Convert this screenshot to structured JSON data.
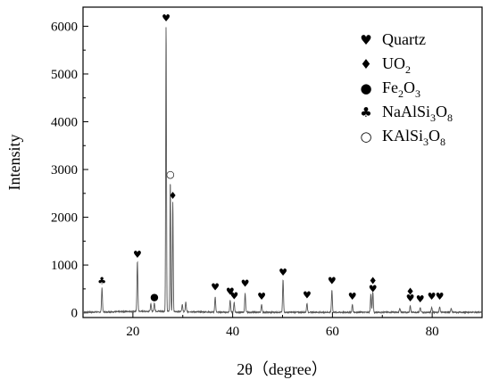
{
  "chart_data": {
    "type": "line",
    "title": "",
    "xlabel": "2θ（degree）",
    "ylabel": "Intensity",
    "xlim": [
      10,
      90
    ],
    "ylim": [
      -100,
      6400
    ],
    "x_ticks": [
      20,
      40,
      60,
      80
    ],
    "x_tick_labels": [
      "20",
      "40",
      "60",
      "80"
    ],
    "y_ticks": [
      0,
      1000,
      2000,
      3000,
      4000,
      5000,
      6000
    ],
    "y_tick_labels": [
      "0",
      "1000",
      "2000",
      "3000",
      "4000",
      "5000",
      "6000"
    ],
    "grid": false,
    "legend_position": "top-right",
    "legend": [
      {
        "symbol": "♥",
        "parts": [
          {
            "t": "Quartz"
          }
        ]
      },
      {
        "symbol": "♦",
        "parts": [
          {
            "t": "UO"
          },
          {
            "t": "2",
            "sub": true
          }
        ]
      },
      {
        "symbol": "●",
        "parts": [
          {
            "t": "Fe"
          },
          {
            "t": "2",
            "sub": true
          },
          {
            "t": "O"
          },
          {
            "t": "3",
            "sub": true
          }
        ]
      },
      {
        "symbol": "♣",
        "parts": [
          {
            "t": "NaAlSi"
          },
          {
            "t": "3",
            "sub": true
          },
          {
            "t": "O"
          },
          {
            "t": "8",
            "sub": true
          }
        ]
      },
      {
        "symbol": "○",
        "parts": [
          {
            "t": "KAlSi"
          },
          {
            "t": "3",
            "sub": true
          },
          {
            "t": "O"
          },
          {
            "t": "8",
            "sub": true
          }
        ]
      }
    ],
    "peaks": [
      {
        "x": 13.8,
        "y": 500
      },
      {
        "x": 20.9,
        "y": 1050
      },
      {
        "x": 23.6,
        "y": 150
      },
      {
        "x": 24.3,
        "y": 180
      },
      {
        "x": 26.65,
        "y": 6000
      },
      {
        "x": 27.5,
        "y": 2750
      },
      {
        "x": 28.0,
        "y": 2300
      },
      {
        "x": 29.9,
        "y": 150
      },
      {
        "x": 30.6,
        "y": 200
      },
      {
        "x": 36.5,
        "y": 320
      },
      {
        "x": 39.5,
        "y": 260
      },
      {
        "x": 40.3,
        "y": 200
      },
      {
        "x": 42.5,
        "y": 400
      },
      {
        "x": 45.8,
        "y": 170
      },
      {
        "x": 50.1,
        "y": 680
      },
      {
        "x": 54.9,
        "y": 190
      },
      {
        "x": 59.9,
        "y": 460
      },
      {
        "x": 64.0,
        "y": 160
      },
      {
        "x": 67.7,
        "y": 380
      },
      {
        "x": 68.1,
        "y": 430
      },
      {
        "x": 73.5,
        "y": 90
      },
      {
        "x": 75.6,
        "y": 140
      },
      {
        "x": 77.6,
        "y": 100
      },
      {
        "x": 79.9,
        "y": 110
      },
      {
        "x": 81.5,
        "y": 120
      },
      {
        "x": 83.8,
        "y": 80
      }
    ],
    "annotations": [
      {
        "symbol": "♣",
        "x": 13.8,
        "y": 600
      },
      {
        "symbol": "♥",
        "x": 20.9,
        "y": 1150
      },
      {
        "symbol": "●",
        "x": 24.3,
        "y": 260
      },
      {
        "symbol": "♥",
        "x": 26.65,
        "y": 6100
      },
      {
        "symbol": "○",
        "x": 27.5,
        "y": 2830
      },
      {
        "symbol": "♦",
        "x": 28.0,
        "y": 2380
      },
      {
        "symbol": "♥",
        "x": 36.5,
        "y": 470
      },
      {
        "symbol": "♥",
        "x": 39.5,
        "y": 380
      },
      {
        "symbol": "♥",
        "x": 40.3,
        "y": 280
      },
      {
        "symbol": "♥",
        "x": 42.5,
        "y": 540
      },
      {
        "symbol": "♥",
        "x": 45.8,
        "y": 270
      },
      {
        "symbol": "♥",
        "x": 50.1,
        "y": 780
      },
      {
        "symbol": "♥",
        "x": 54.9,
        "y": 300
      },
      {
        "symbol": "♥",
        "x": 59.9,
        "y": 600
      },
      {
        "symbol": "♥",
        "x": 64.0,
        "y": 270
      },
      {
        "symbol": "♦",
        "x": 68.1,
        "y": 600
      },
      {
        "symbol": "♥",
        "x": 68.1,
        "y": 430
      },
      {
        "symbol": "♦",
        "x": 75.6,
        "y": 380
      },
      {
        "symbol": "♥",
        "x": 75.6,
        "y": 240
      },
      {
        "symbol": "♥",
        "x": 77.6,
        "y": 220
      },
      {
        "symbol": "♥",
        "x": 79.9,
        "y": 270
      },
      {
        "symbol": "♥",
        "x": 81.5,
        "y": 270
      }
    ],
    "series_color": "#555555"
  }
}
